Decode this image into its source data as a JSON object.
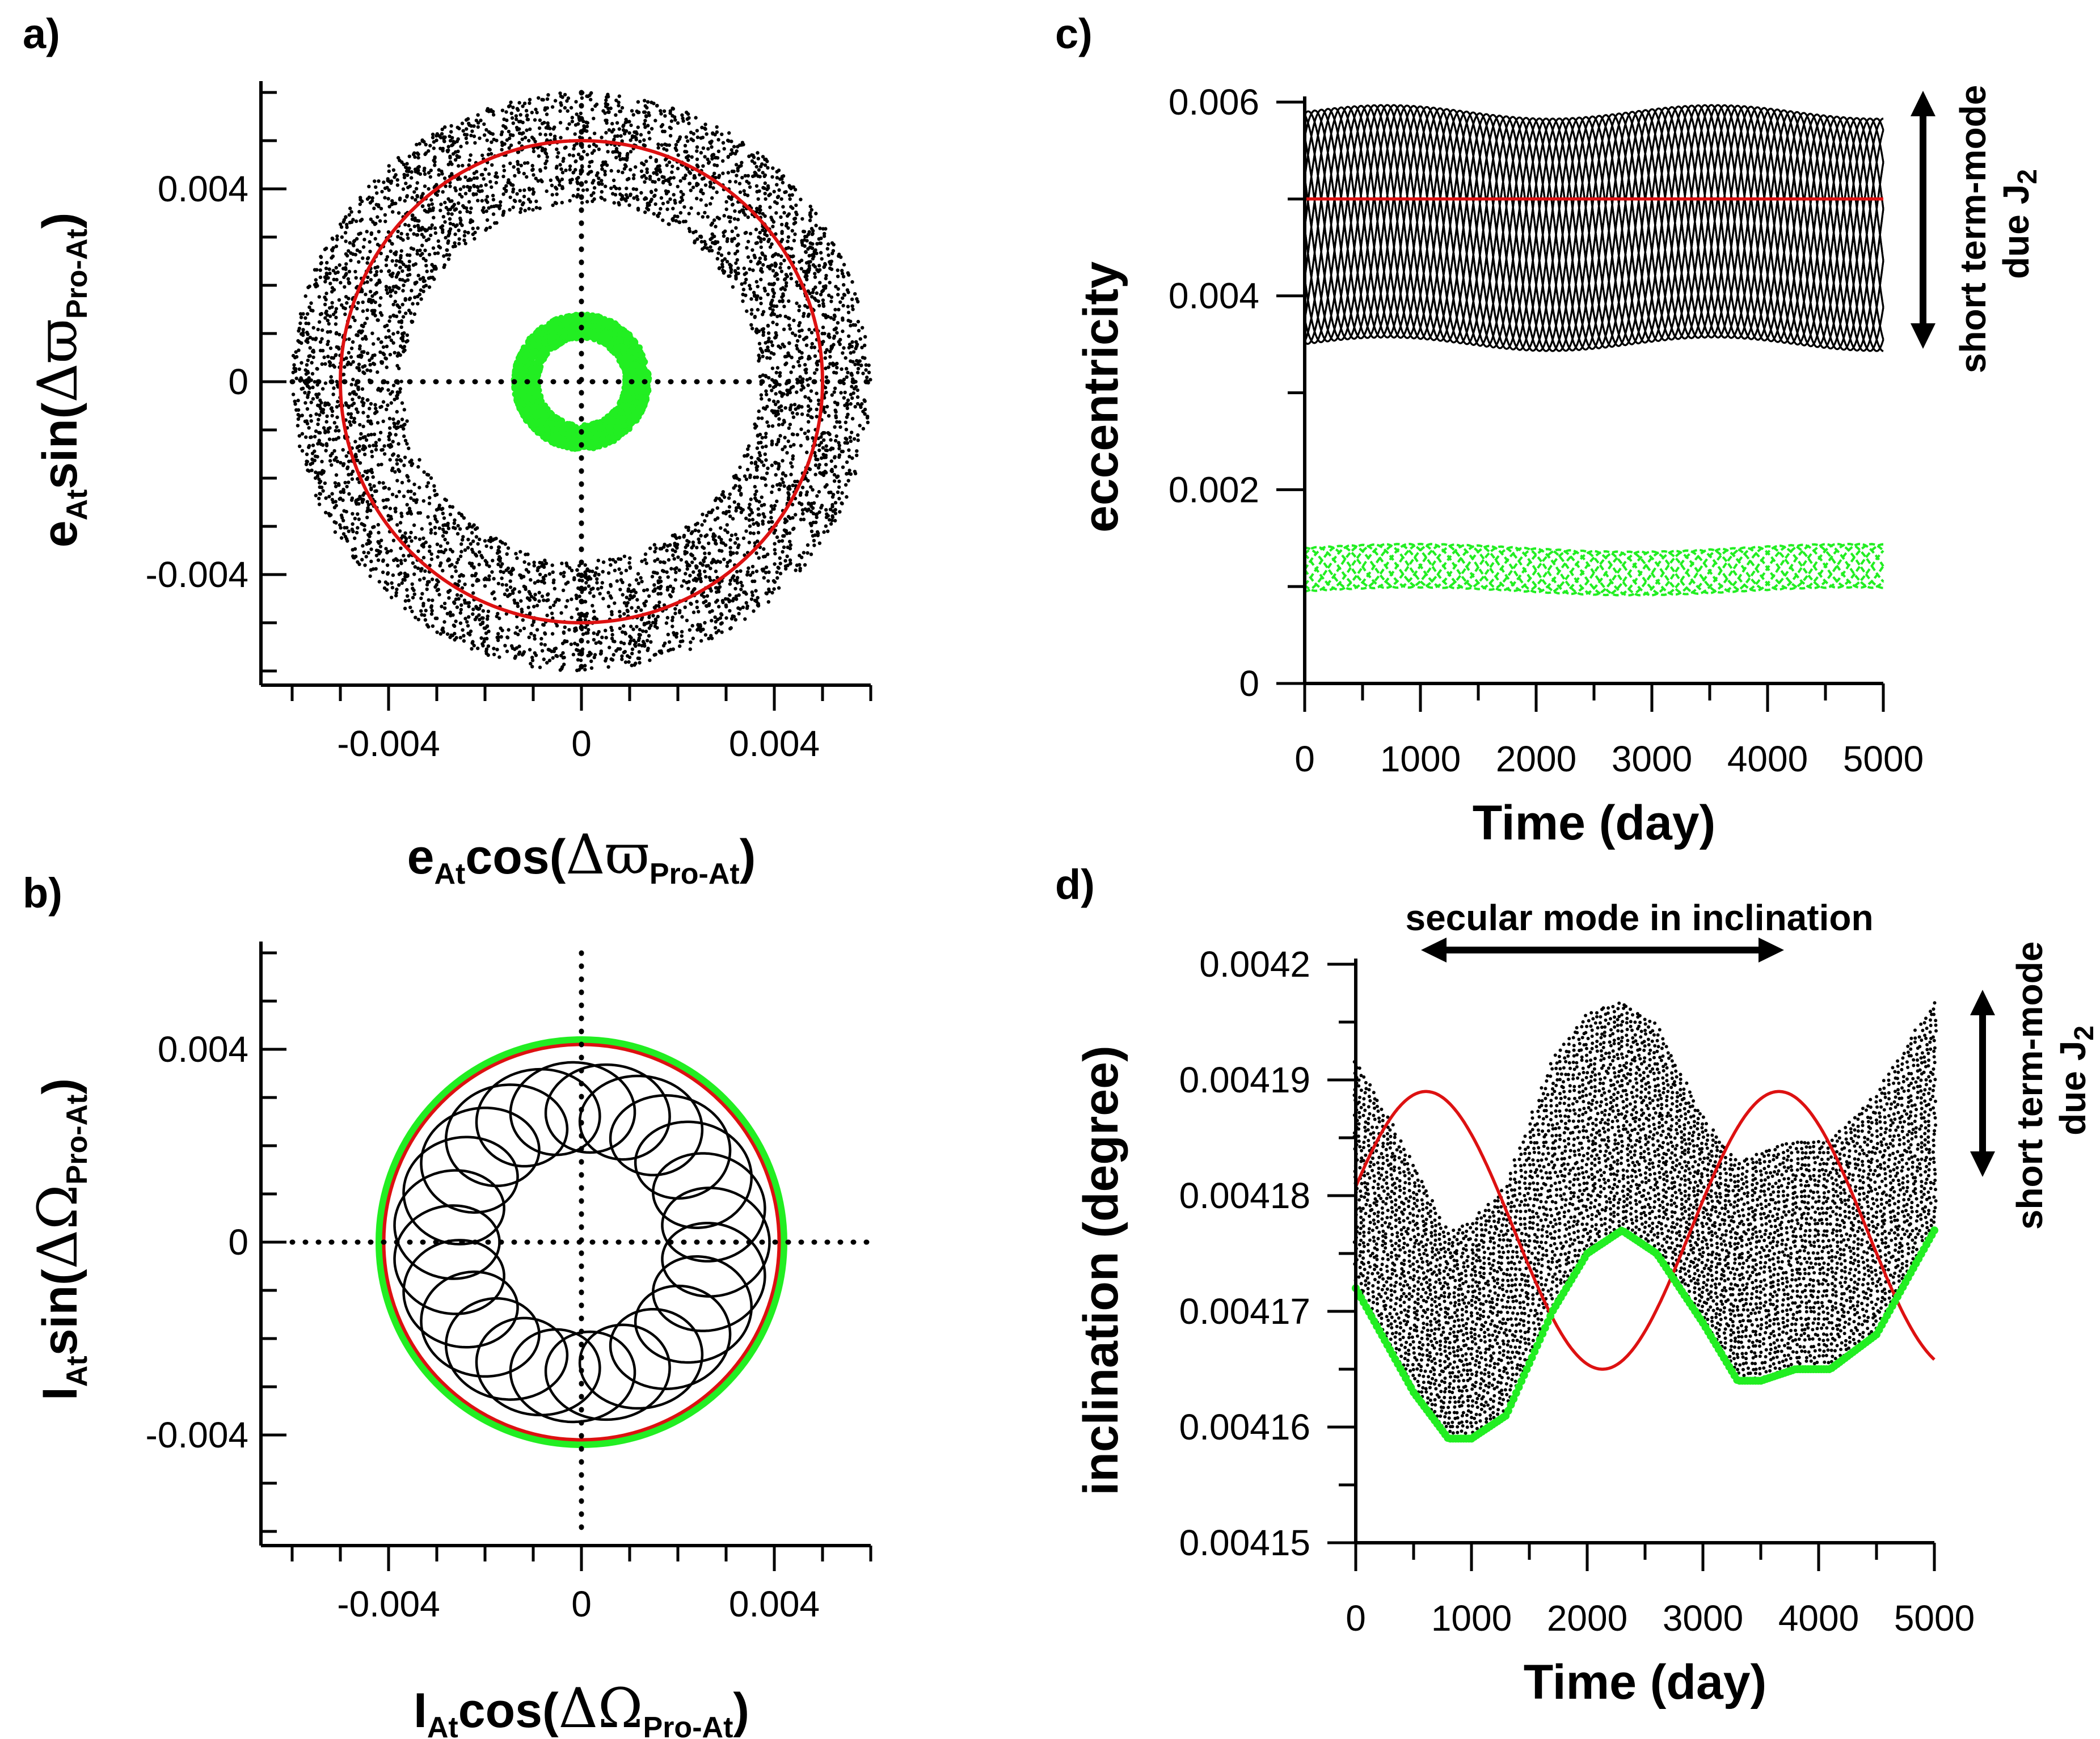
{
  "colors": {
    "black": "#000000",
    "red": "#dd1111",
    "green": "#22ee22"
  },
  "panels": {
    "a": {
      "label": "a)",
      "xlabel": {
        "main": "e",
        "sub": "At",
        "mid": "cos(",
        "greek": "Δϖ",
        "gsub": "Pro-At",
        "end": ")"
      },
      "ylabel": {
        "main": "e",
        "sub": "At",
        "mid": "sin(",
        "greek": "Δϖ",
        "gsub": "Pro-At",
        "end": ")"
      }
    },
    "b": {
      "label": "b)",
      "xlabel": {
        "main": "I",
        "sub": "At",
        "mid": "cos(",
        "greek": "ΔΩ",
        "gsub": "Pro-At",
        "end": ")"
      },
      "ylabel": {
        "main": "I",
        "sub": "At",
        "mid": "sin(",
        "greek": "ΔΩ",
        "gsub": "Pro-At",
        "end": ")"
      }
    },
    "c": {
      "label": "c)",
      "xlabel": "Time (day)",
      "ylabel": "eccentricity",
      "annotation": {
        "text": "short term-mode",
        "text2": "due J",
        "sub": "2"
      }
    },
    "d": {
      "label": "d)",
      "xlabel": "Time (day)",
      "ylabel": "inclination (degree)",
      "annotation_top": "secular mode in inclination",
      "annotation": {
        "text": "short term-mode",
        "text2": "due J",
        "sub": "2"
      }
    }
  },
  "chart_data": [
    {
      "id": "a",
      "type": "scatter",
      "xlim": [
        -0.006,
        0.006
      ],
      "ylim": [
        -0.006,
        0.006
      ],
      "xticks": [
        -0.004,
        0,
        0.004
      ],
      "xtick_labels": [
        "-0.004",
        "0",
        "0.004"
      ],
      "yticks": [
        -0.004,
        0,
        0.004
      ],
      "ytick_labels": [
        "-0.004",
        "0",
        "0.004"
      ],
      "grid": false,
      "series": [
        {
          "kind": "annulus",
          "color": "black",
          "r_inner": 0.0037,
          "r_outer": 0.006
        },
        {
          "kind": "circle",
          "color": "red",
          "r": 0.005
        },
        {
          "kind": "annulus",
          "color": "green",
          "r_inner": 0.0009,
          "r_outer": 0.0014
        }
      ]
    },
    {
      "id": "b",
      "type": "scatter",
      "xlim": [
        -0.006,
        0.006
      ],
      "ylim": [
        -0.006,
        0.006
      ],
      "xticks": [
        -0.004,
        0,
        0.004
      ],
      "xtick_labels": [
        "-0.004",
        "0",
        "0.004"
      ],
      "yticks": [
        -0.004,
        0,
        0.004
      ],
      "ytick_labels": [
        "-0.004",
        "0",
        "0.004"
      ],
      "grid": false,
      "series": [
        {
          "kind": "circle",
          "color": "green",
          "r": 0.0042
        },
        {
          "kind": "circle",
          "color": "red",
          "r": 0.0041
        },
        {
          "kind": "epicycle",
          "color": "black",
          "R": 0.0028,
          "r": 0.0011,
          "loops": 23
        }
      ]
    },
    {
      "id": "c",
      "type": "line",
      "xlim": [
        0,
        5000
      ],
      "ylim": [
        0,
        0.006
      ],
      "xticks": [
        0,
        1000,
        2000,
        3000,
        4000,
        5000
      ],
      "xtick_labels": [
        "0",
        "1000",
        "2000",
        "3000",
        "4000",
        "5000"
      ],
      "yticks": [
        0,
        0.002,
        0.004,
        0.006
      ],
      "ytick_labels": [
        "0",
        "0.002",
        "0.004",
        "0.006"
      ],
      "grid": false,
      "series": [
        {
          "kind": "band",
          "color": "black",
          "x": [
            0,
            5000
          ],
          "lower": 0.0035,
          "upper": 0.0059
        },
        {
          "kind": "line",
          "color": "red",
          "x": [
            0,
            5000
          ],
          "y": [
            0.005,
            0.005
          ]
        },
        {
          "kind": "band",
          "color": "green",
          "x": [
            0,
            5000
          ],
          "lower": 0.00095,
          "upper": 0.0014
        }
      ]
    },
    {
      "id": "d",
      "type": "line",
      "xlim": [
        0,
        5000
      ],
      "ylim": [
        0.00415,
        0.0042
      ],
      "xticks": [
        0,
        1000,
        2000,
        3000,
        4000,
        5000
      ],
      "xtick_labels": [
        "0",
        "1000",
        "2000",
        "3000",
        "4000",
        "5000"
      ],
      "yticks": [
        0.00415,
        0.00416,
        0.00417,
        0.00418,
        0.00419,
        0.0042
      ],
      "ytick_labels": [
        "0.00415",
        "0.00416",
        "0.00417",
        "0.00418",
        "0.00419",
        "0.0042"
      ],
      "grid": false,
      "series": [
        {
          "kind": "band",
          "color": "black",
          "x": [
            0,
            500,
            800,
            1000,
            1300,
            1700,
            2000,
            2300,
            2600,
            3000,
            3300,
            3500,
            3800,
            4100,
            4500,
            5000
          ],
          "upper": [
            0.004192,
            0.004183,
            0.004177,
            0.004178,
            0.004181,
            0.004192,
            0.004196,
            0.004197,
            0.004195,
            0.004187,
            0.004183,
            0.004184,
            0.004185,
            0.004185,
            0.004189,
            0.004197
          ],
          "lower": [
            0.004172,
            0.004163,
            0.004159,
            0.004159,
            0.004161,
            0.00417,
            0.004175,
            0.004177,
            0.004175,
            0.004169,
            0.004164,
            0.004164,
            0.004165,
            0.004165,
            0.004168,
            0.004177
          ]
        },
        {
          "kind": "line",
          "color": "red",
          "x": [
            0,
            300,
            600,
            900,
            1200,
            1500,
            1800,
            2100,
            2400,
            2700,
            3000,
            3300,
            3600,
            3900,
            4200,
            4500,
            4800,
            5000
          ],
          "y": [
            0.00418,
            0.004186,
            0.004189,
            0.004187,
            0.00418,
            0.004172,
            0.004167,
            0.004165,
            0.004168,
            0.004175,
            0.004183,
            0.004188,
            0.004189,
            0.004186,
            0.004179,
            0.004172,
            0.004167,
            0.004165
          ]
        },
        {
          "kind": "line",
          "color": "green",
          "x": [
            0,
            500,
            800,
            1000,
            1300,
            1700,
            2000,
            2300,
            2600,
            3000,
            3300,
            3500,
            3800,
            4100,
            4500,
            5000
          ],
          "y": [
            0.004172,
            0.004163,
            0.004159,
            0.004159,
            0.004161,
            0.00417,
            0.004175,
            0.004177,
            0.004175,
            0.004169,
            0.004164,
            0.004164,
            0.004165,
            0.004165,
            0.004168,
            0.004177
          ]
        }
      ]
    }
  ]
}
